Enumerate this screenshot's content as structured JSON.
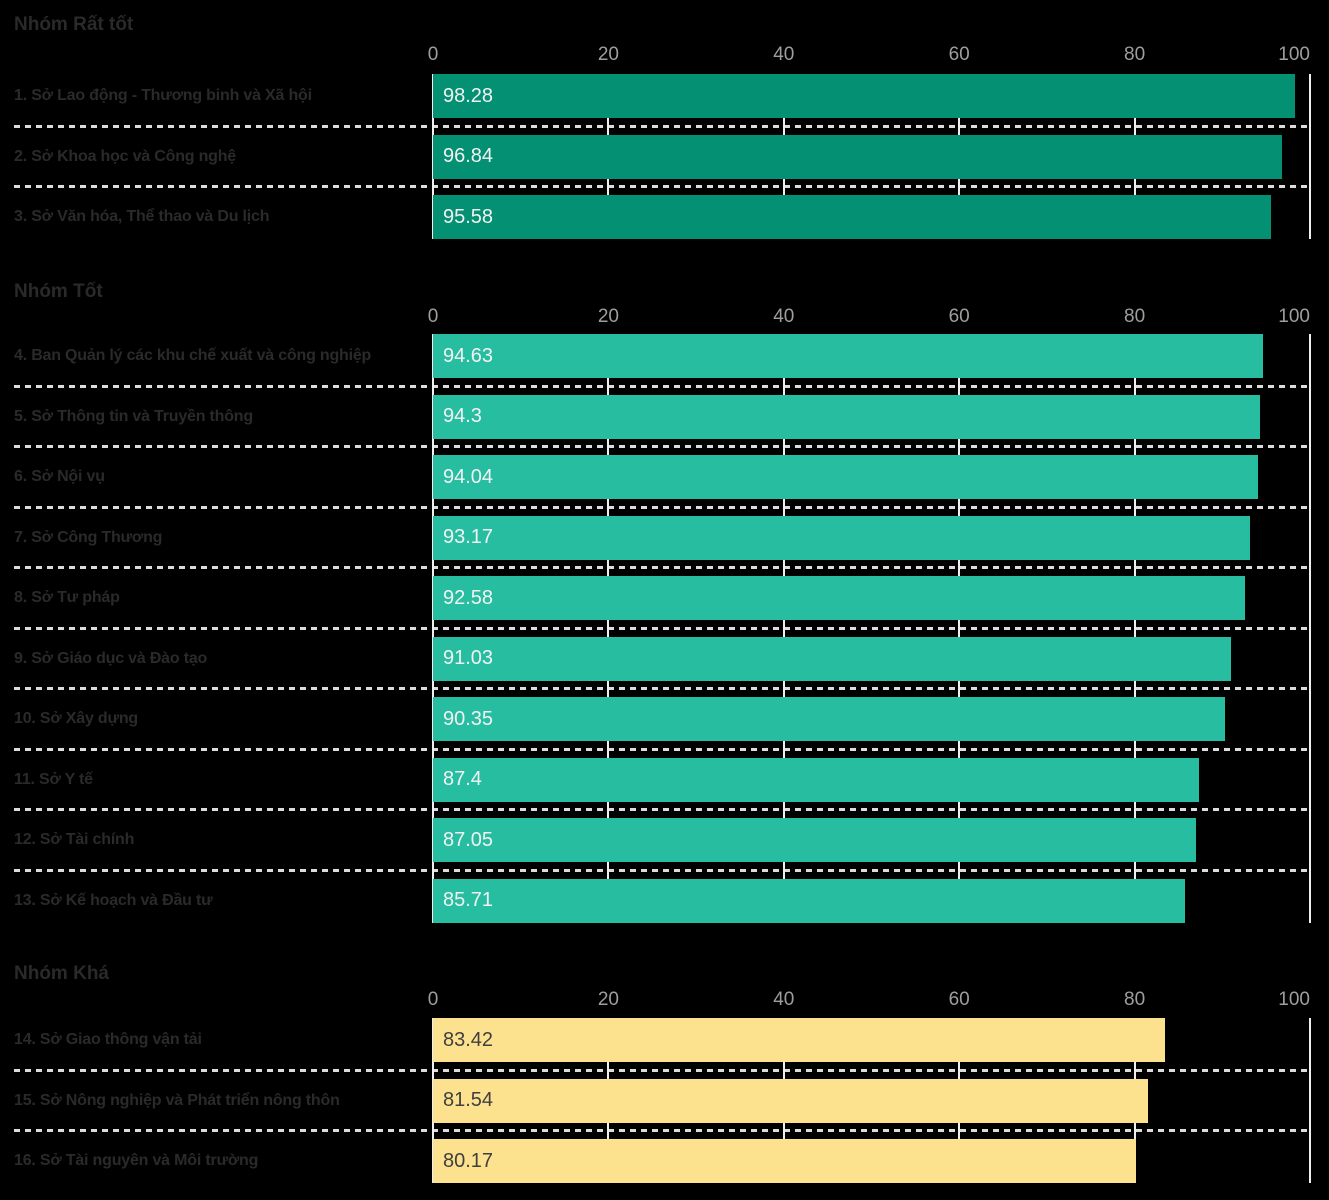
{
  "chart_data": {
    "type": "bar",
    "orientation": "horizontal",
    "title": "",
    "xlabel": "",
    "ylabel": "",
    "xlim": [
      0,
      100
    ],
    "grid": true,
    "axis": {
      "ticks": [
        0,
        20,
        40,
        60,
        80,
        100
      ],
      "tick_labels": [
        "0",
        "20",
        "40",
        "60",
        "80",
        "100"
      ]
    },
    "colors": {
      "background": "#000000",
      "group_very_good_bar": "#049173",
      "group_good_bar": "#27bda0",
      "group_fair_bar": "#fce18f",
      "gridline": "#efefef",
      "separator_dash": "#dcdcdc",
      "axis_text": "#9e9e9e",
      "label_text": "#2a2a2a",
      "value_text_on_teal": "#f2f2f2",
      "value_text_on_yellow": "#3f3f3f"
    },
    "groups": [
      {
        "title": "Nhóm Rất tốt",
        "bar_color": "#049173",
        "value_color": "#f2f2f2",
        "items": [
          {
            "label": "1. Sở Lao động - Thương binh và Xã hội",
            "value": 98.28,
            "value_label": "98.28"
          },
          {
            "label": "2. Sở Khoa học và Công nghệ",
            "value": 96.84,
            "value_label": "96.84"
          },
          {
            "label": "3. Sở Văn hóa, Thể thao và Du lịch",
            "value": 95.58,
            "value_label": "95.58"
          }
        ]
      },
      {
        "title": "Nhóm Tốt",
        "bar_color": "#27bda0",
        "value_color": "#f2f2f2",
        "items": [
          {
            "label": "4. Ban Quản lý các khu chế xuất và công nghiệp",
            "value": 94.63,
            "value_label": "94.63"
          },
          {
            "label": "5. Sở Thông tin và Truyền thông",
            "value": 94.3,
            "value_label": "94.3"
          },
          {
            "label": "6. Sở Nội vụ",
            "value": 94.04,
            "value_label": "94.04"
          },
          {
            "label": "7. Sở Công Thương",
            "value": 93.17,
            "value_label": "93.17"
          },
          {
            "label": "8. Sở Tư pháp",
            "value": 92.58,
            "value_label": "92.58"
          },
          {
            "label": "9. Sở Giáo dục và Đào tạo",
            "value": 91.03,
            "value_label": "91.03"
          },
          {
            "label": "10. Sở Xây dựng",
            "value": 90.35,
            "value_label": "90.35"
          },
          {
            "label": "11. Sở Y tế",
            "value": 87.4,
            "value_label": "87.4"
          },
          {
            "label": "12. Sở Tài chính",
            "value": 87.05,
            "value_label": "87.05"
          },
          {
            "label": "13. Sở Kế hoạch và Đầu tư",
            "value": 85.71,
            "value_label": "85.71"
          }
        ]
      },
      {
        "title": "Nhóm Khá",
        "bar_color": "#fce18f",
        "value_color": "#3f3f3f",
        "items": [
          {
            "label": "14. Sở Giao thông vận tải",
            "value": 83.42,
            "value_label": "83.42"
          },
          {
            "label": "15. Sở Nông nghiệp và Phát triển nông thôn",
            "value": 81.54,
            "value_label": "81.54"
          },
          {
            "label": "16. Sở Tài nguyên và Môi trường",
            "value": 80.17,
            "value_label": "80.17"
          }
        ]
      }
    ]
  }
}
